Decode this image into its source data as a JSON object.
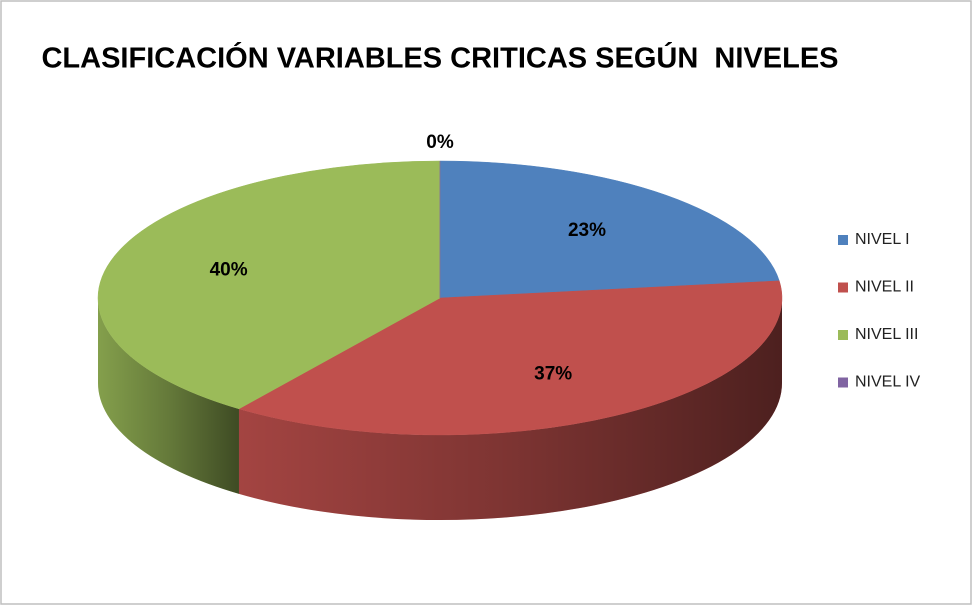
{
  "chart_data": {
    "type": "pie",
    "title": "CLASIFICACIÓN VARIABLES CRITICAS SEGÚN  NIVELES",
    "categories": [
      "NIVEL I",
      "NIVEL II",
      "NIVEL III",
      "NIVEL IV"
    ],
    "values": [
      23,
      37,
      40,
      0
    ],
    "value_labels": [
      "23%",
      "37%",
      "40%",
      "0%"
    ],
    "colors": [
      "#4f81bd",
      "#c0504d",
      "#9bbb59",
      "#8064a2"
    ],
    "legend": "right"
  }
}
